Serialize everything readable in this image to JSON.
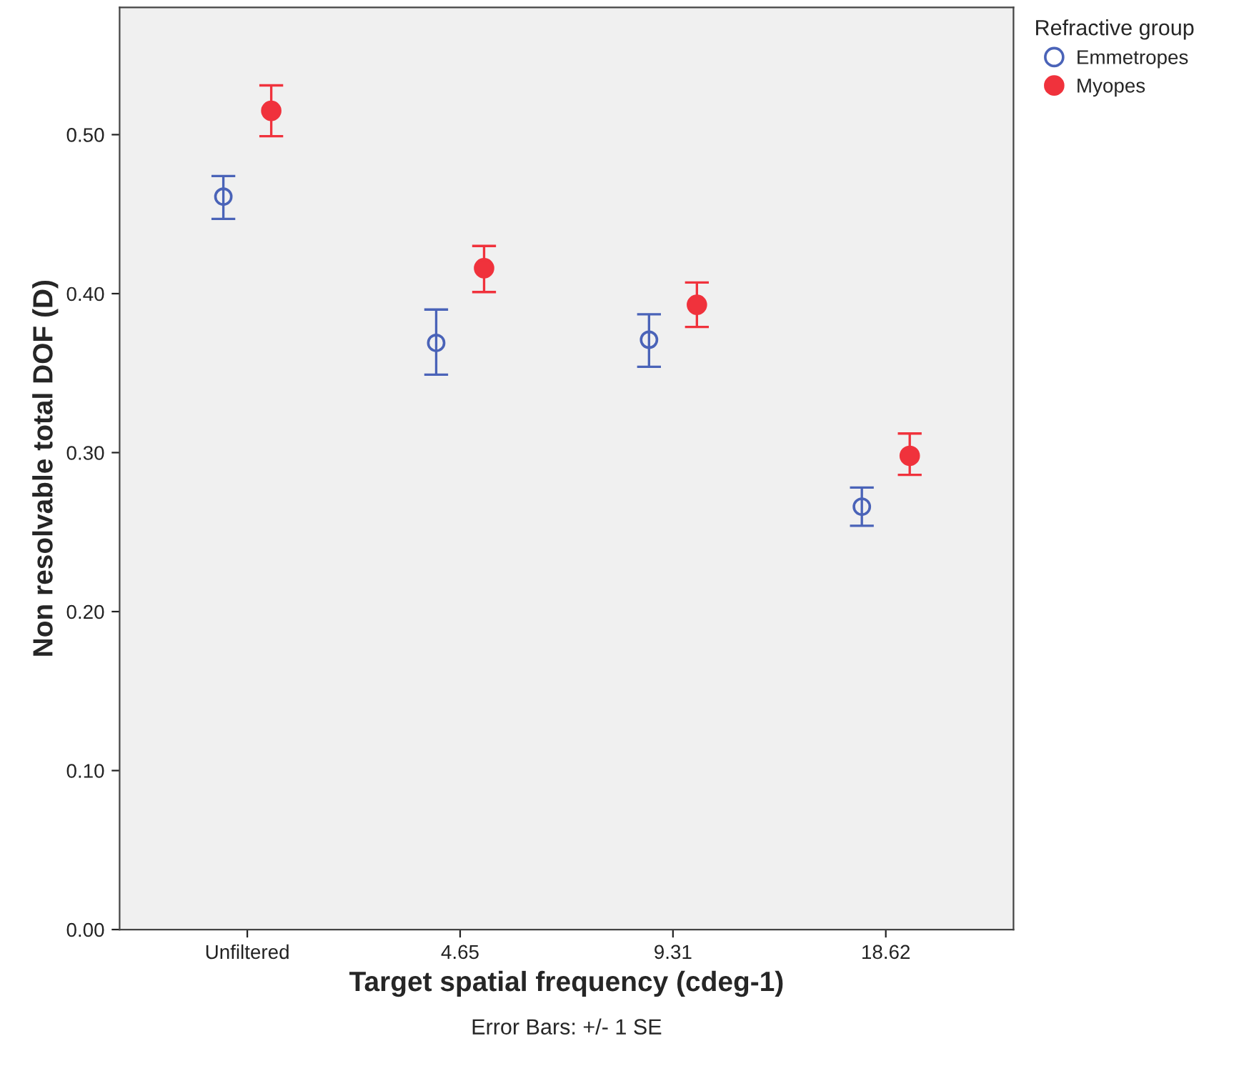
{
  "chart_data": {
    "type": "scatter",
    "xlabel": "Target spatial frequency (cdeg-1)",
    "ylabel": "Non resolvable total DOF (D)",
    "categories": [
      "Unfiltered",
      "4.65",
      "9.31",
      "18.62"
    ],
    "series": [
      {
        "name": "Emmetropes",
        "color": "#4a63b8",
        "marker": "circle",
        "values": [
          0.461,
          0.369,
          0.371,
          0.266
        ],
        "errors": [
          [
            0.447,
            0.474
          ],
          [
            0.349,
            0.39
          ],
          [
            0.354,
            0.387
          ],
          [
            0.254,
            0.278
          ]
        ]
      },
      {
        "name": "Myopes",
        "color": "#f0323c",
        "marker": "circle",
        "values": [
          0.515,
          0.416,
          0.393,
          0.298
        ],
        "errors": [
          [
            0.499,
            0.531
          ],
          [
            0.401,
            0.43
          ],
          [
            0.379,
            0.407
          ],
          [
            0.286,
            0.312
          ]
        ]
      }
    ],
    "ylim": [
      0.0,
      0.58
    ],
    "yticks": [
      {
        "value": 0.0,
        "label": "0.00"
      },
      {
        "value": 0.1,
        "label": "0.10"
      },
      {
        "value": 0.2,
        "label": "0.20"
      },
      {
        "value": 0.3,
        "label": "0.30"
      },
      {
        "value": 0.4,
        "label": "0.40"
      },
      {
        "value": 0.5,
        "label": "0.50"
      }
    ],
    "legend": "top right",
    "legend_title": "Refractive group",
    "grid": false,
    "annotations": [
      "Error Bars: +/- 1 SE"
    ]
  }
}
